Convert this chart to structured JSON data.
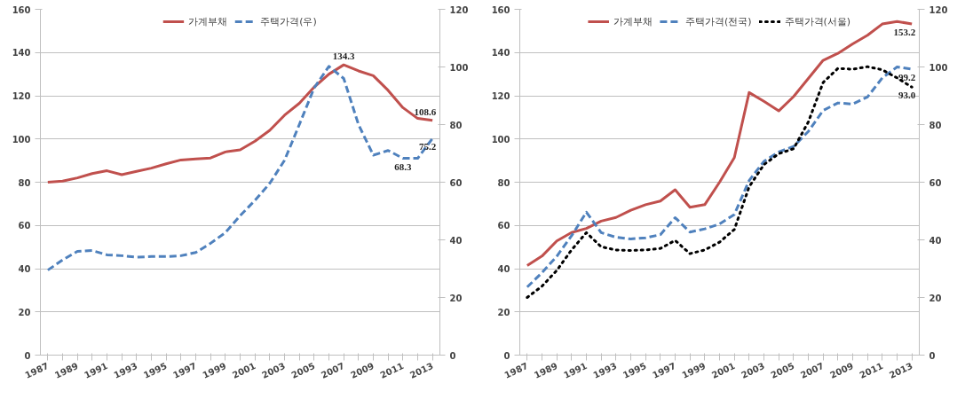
{
  "chart_data": [
    {
      "type": "line",
      "categories": [
        "1987",
        null,
        "1989",
        null,
        "1991",
        null,
        "1993",
        null,
        "1995",
        null,
        "1997",
        null,
        "1999",
        null,
        "2001",
        null,
        "2003",
        null,
        "2005",
        null,
        "2007",
        null,
        "2009",
        null,
        "2011",
        null,
        "2013"
      ],
      "ylim": [
        0,
        160
      ],
      "yticks": [
        0,
        20,
        40,
        60,
        80,
        100,
        120,
        140,
        160
      ],
      "y2lim": [
        0,
        120
      ],
      "y2ticks": [
        0,
        20,
        40,
        60,
        80,
        100,
        120
      ],
      "grid": "y",
      "legend": "top",
      "marker": "none",
      "series": [
        {
          "name": "가계부채",
          "color": "#c0504d",
          "line_style": "solid",
          "values": [
            80,
            80.5,
            82,
            84,
            85.3,
            83.5,
            85,
            86.5,
            88.5,
            90.3,
            90.8,
            91.2,
            94,
            95,
            99,
            104,
            111,
            116.5,
            124,
            130,
            134.3,
            131.5,
            129.3,
            122.5,
            114.5,
            109.5,
            108.6
          ],
          "value_labels": [
            null,
            null,
            null,
            null,
            null,
            null,
            null,
            null,
            null,
            null,
            null,
            null,
            null,
            null,
            null,
            null,
            null,
            null,
            null,
            null,
            "134.3",
            null,
            null,
            null,
            null,
            null,
            "108.6"
          ]
        },
        {
          "name": "주택가격(우)",
          "color": "#4f81bd",
          "line_style": "dashed",
          "axis": "y2",
          "values": [
            29.5,
            33,
            36,
            36.3,
            34.8,
            34.5,
            34,
            34.2,
            34.2,
            34.5,
            35.6,
            38.8,
            42.5,
            48.4,
            53.7,
            59.6,
            67.6,
            80,
            92.7,
            100.2,
            96,
            80,
            69.4,
            71,
            68.3,
            68.3,
            75.2
          ],
          "value_labels": [
            null,
            null,
            null,
            null,
            null,
            null,
            null,
            null,
            null,
            null,
            null,
            null,
            null,
            null,
            null,
            null,
            null,
            null,
            null,
            null,
            null,
            null,
            null,
            null,
            "68.3",
            null,
            "75.2"
          ]
        }
      ]
    },
    {
      "type": "line",
      "categories": [
        "1987",
        null,
        "1989",
        null,
        "1991",
        null,
        "1993",
        null,
        "1995",
        null,
        "1997",
        null,
        "1999",
        null,
        "2001",
        null,
        "2003",
        null,
        "2005",
        null,
        "2007",
        null,
        "2009",
        null,
        "2011",
        null,
        "2013"
      ],
      "ylim": [
        0,
        160
      ],
      "yticks": [
        0,
        20,
        40,
        60,
        80,
        100,
        120,
        140,
        160
      ],
      "y2lim": [
        0,
        120
      ],
      "y2ticks": [
        0,
        20,
        40,
        60,
        80,
        100,
        120
      ],
      "grid": "y",
      "legend": "top",
      "marker": "none",
      "series": [
        {
          "name": "가계부채",
          "color": "#c0504d",
          "line_style": "solid",
          "values": [
            41.4,
            45.8,
            52.8,
            56.7,
            58.6,
            62,
            63.7,
            67,
            69.6,
            71.3,
            76.5,
            68.4,
            69.6,
            80,
            91.4,
            121.5,
            117.4,
            113,
            119.6,
            128,
            136.4,
            139.6,
            144,
            148,
            153.2,
            154.4,
            153.2
          ],
          "value_labels": [
            null,
            null,
            null,
            null,
            null,
            null,
            null,
            null,
            null,
            null,
            null,
            null,
            null,
            null,
            null,
            null,
            null,
            null,
            null,
            null,
            null,
            null,
            null,
            null,
            null,
            null,
            "153.2"
          ]
        },
        {
          "name": "주택가격(전국)",
          "color": "#4f81bd",
          "line_style": "dashed",
          "axis": "y2",
          "values": [
            23.6,
            28.6,
            34.3,
            41.4,
            49.6,
            42.5,
            40.9,
            40.3,
            40.7,
            41.8,
            47.7,
            42.7,
            43.8,
            45.5,
            48.8,
            60.6,
            67.2,
            70.5,
            72.4,
            77.6,
            84.9,
            87.5,
            87.1,
            89.6,
            96.2,
            100,
            99.2
          ],
          "value_labels": [
            null,
            null,
            null,
            null,
            null,
            null,
            null,
            null,
            null,
            null,
            null,
            null,
            null,
            null,
            null,
            null,
            null,
            null,
            null,
            null,
            null,
            null,
            null,
            null,
            null,
            null,
            "99.2"
          ]
        },
        {
          "name": "주택가격(서울)",
          "color": "#000000",
          "line_style": "dotted",
          "axis": "y2",
          "values": [
            20,
            23.9,
            29.4,
            36.5,
            42.5,
            37.6,
            36.5,
            36.3,
            36.5,
            37,
            39.8,
            35.2,
            36.5,
            39.2,
            43.6,
            58.4,
            66.1,
            69.9,
            71.6,
            80.9,
            94.6,
            99.5,
            99.2,
            100.1,
            99,
            96.2,
            93
          ],
          "value_labels": [
            null,
            null,
            null,
            null,
            null,
            null,
            null,
            null,
            null,
            null,
            null,
            null,
            null,
            null,
            null,
            null,
            null,
            null,
            null,
            null,
            null,
            null,
            null,
            null,
            null,
            null,
            "93.0"
          ]
        }
      ]
    }
  ]
}
